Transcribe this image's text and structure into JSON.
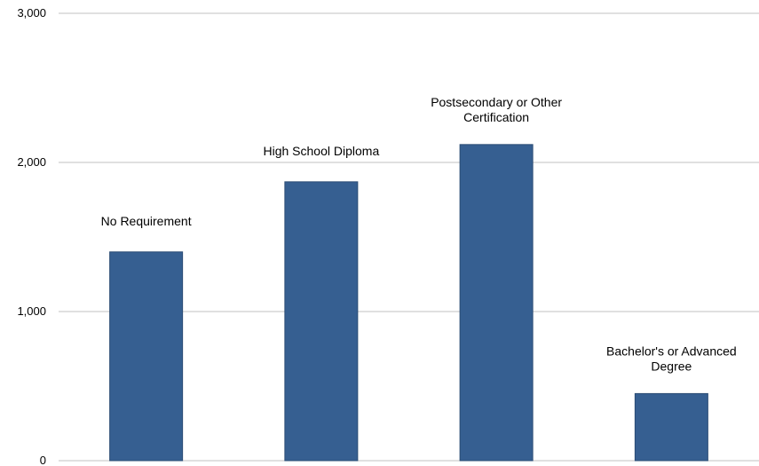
{
  "chart_data": {
    "type": "bar",
    "categories": [
      "No Requirement",
      "High School Diploma",
      "Postsecondary or Other Certification",
      "Bachelor's or Advanced Degree"
    ],
    "category_label_lines": [
      [
        "No Requirement"
      ],
      [
        "High School Diploma"
      ],
      [
        "Postsecondary or Other",
        "Certification"
      ],
      [
        "Bachelor's or Advanced",
        "Degree"
      ]
    ],
    "values": [
      1400,
      1870,
      2120,
      450
    ],
    "ylim": [
      0,
      3000
    ],
    "yticks": [
      0,
      1000,
      2000,
      3000
    ],
    "ytick_labels": [
      "0",
      "1,000",
      "2,000",
      "3,000"
    ],
    "title": "",
    "xlabel": "",
    "ylabel": "",
    "grid": true,
    "legend": "none",
    "colors": {
      "bar": "#365f91",
      "bar_edge": "#2b4c74",
      "grid": "#c0c0c0"
    }
  }
}
